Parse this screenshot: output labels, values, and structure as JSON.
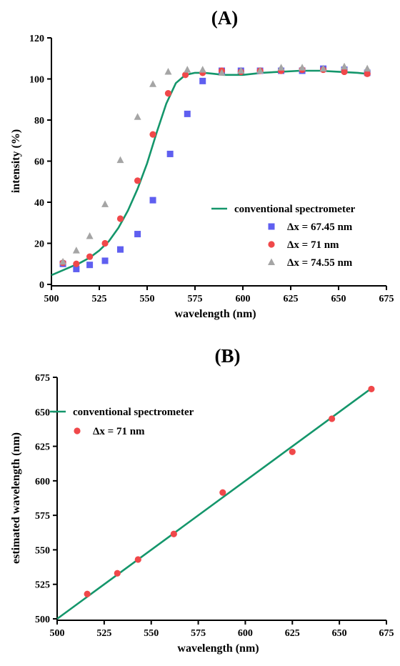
{
  "chart_data": [
    {
      "panel_label": "(A)",
      "type": "scatter",
      "xlabel": "wavelength (nm)",
      "ylabel": "intensity (%)",
      "xlim": [
        500,
        675
      ],
      "ylim": [
        0,
        120
      ],
      "x_ticks": [
        500,
        525,
        550,
        575,
        600,
        625,
        650,
        675
      ],
      "y_ticks": [
        0,
        20,
        40,
        60,
        80,
        100,
        120
      ],
      "grid": false,
      "legend_position": "center-right",
      "series": [
        {
          "name": "conventional spectrometer",
          "kind": "line",
          "color": "#14966b",
          "x": [
            500,
            505,
            510,
            515,
            520,
            525,
            530,
            535,
            540,
            545,
            550,
            555,
            560,
            565,
            570,
            575,
            580,
            585,
            590,
            600,
            610,
            620,
            630,
            640,
            650,
            660,
            665
          ],
          "y": [
            4.5,
            6.5,
            8.5,
            10.5,
            13,
            16.5,
            21,
            27.5,
            36,
            46.5,
            59,
            74,
            88,
            98,
            102,
            103,
            103,
            102.5,
            102,
            102,
            103,
            103.5,
            104,
            104,
            103.5,
            103,
            102.5
          ]
        },
        {
          "name": "Δx = 67.45 nm",
          "kind": "square",
          "color": "#5f5ff0",
          "x": [
            506,
            513,
            520,
            528,
            536,
            545,
            553,
            562,
            571,
            579,
            589,
            599,
            609,
            620,
            631,
            642,
            653,
            665
          ],
          "y": [
            10,
            7.5,
            9.5,
            11.5,
            17,
            24.5,
            41,
            63.5,
            83,
            99,
            104,
            104,
            104,
            104,
            104,
            105,
            104.5,
            103
          ]
        },
        {
          "name": "Δx = 71 nm",
          "kind": "circle",
          "color": "#f0484a",
          "x": [
            506,
            513,
            520,
            528,
            536,
            545,
            553,
            561,
            570,
            579,
            589,
            599,
            609,
            620,
            631,
            642,
            653,
            665
          ],
          "y": [
            10.5,
            10,
            13.5,
            20,
            32,
            50.5,
            73,
            93,
            102,
            103,
            104,
            103.5,
            104,
            104,
            104.5,
            104.5,
            103.5,
            102.5
          ]
        },
        {
          "name": "Δx = 74.55 nm",
          "kind": "triangle",
          "color": "#a5a5a5",
          "x": [
            506,
            513,
            520,
            528,
            536,
            545,
            553,
            561,
            571,
            579,
            589,
            599,
            609,
            620,
            631,
            642,
            653,
            665
          ],
          "y": [
            11,
            16.5,
            23.5,
            39,
            60.5,
            81.5,
            97.5,
            103.5,
            104.5,
            104.5,
            103,
            104,
            104,
            105.5,
            105.5,
            105,
            106,
            105
          ]
        }
      ]
    },
    {
      "panel_label": "(B)",
      "type": "scatter",
      "xlabel": "wavelength (nm)",
      "ylabel": "estimated wavelength (nm)",
      "xlim": [
        500,
        675
      ],
      "ylim": [
        500,
        675
      ],
      "x_ticks": [
        500,
        525,
        550,
        575,
        600,
        625,
        650,
        675
      ],
      "y_ticks": [
        500,
        525,
        550,
        575,
        600,
        625,
        650,
        675
      ],
      "grid": false,
      "legend_position": "top-left",
      "series": [
        {
          "name": "conventional spectrometer",
          "kind": "line",
          "color": "#14966b",
          "x": [
            500,
            667
          ],
          "y": [
            500,
            667
          ]
        },
        {
          "name": "Δx = 71 nm",
          "kind": "circle",
          "color": "#f0484a",
          "x": [
            516,
            532,
            543,
            562,
            588,
            625,
            646,
            667
          ],
          "y": [
            518,
            533,
            543,
            561.5,
            591.5,
            621,
            645,
            666.5
          ]
        }
      ]
    }
  ]
}
